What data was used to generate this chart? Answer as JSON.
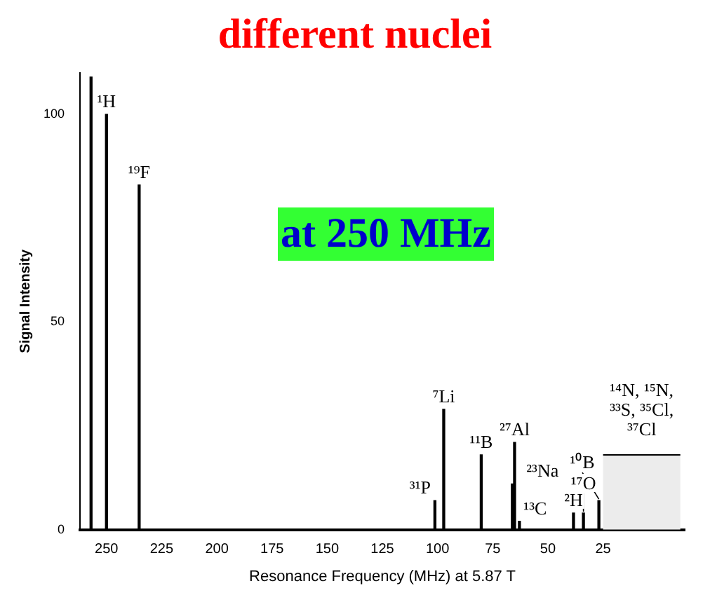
{
  "chart_data": {
    "type": "bar",
    "title": "different nuclei",
    "xlabel": "Resonance Frequency (MHz) at 5.87 T",
    "ylabel": "Signal Intensity",
    "x": [
      257,
      250,
      235.2,
      101.2,
      97.2,
      80.2,
      66.1,
      65.1,
      62.9,
      38.4,
      33.9,
      26.9
    ],
    "values": [
      109,
      100,
      83,
      7,
      29,
      18,
      11,
      21,
      2,
      4,
      4,
      7
    ],
    "color": "#000000",
    "xlim": [
      262,
      -12
    ],
    "xticks": [
      250,
      225,
      200,
      175,
      150,
      125,
      100,
      75,
      50,
      25
    ],
    "ylim": [
      0,
      110
    ],
    "yticks": [
      0,
      50,
      100
    ],
    "grid": false,
    "legend": false,
    "bands": [
      {
        "axis": "x",
        "from": 25,
        "to": -10,
        "label": "¹⁴N, ¹⁵N, ³³S, ³⁵Cl, ³⁷Cl"
      }
    ],
    "annotations": [
      "at 250 MHz",
      {
        "text": "¹H",
        "x": 250,
        "y": 100
      },
      {
        "text": "¹⁹F",
        "x": 235.2,
        "y": 83
      },
      {
        "text": "³¹P",
        "x": 101.2,
        "y": 7
      },
      {
        "text": "⁷Li",
        "x": 97.2,
        "y": 29
      },
      {
        "text": "¹¹B",
        "x": 80.2,
        "y": 18
      },
      {
        "text": "²³Na",
        "x": 66.1,
        "y": 11
      },
      {
        "text": "²⁷Al",
        "x": 65.1,
        "y": 21
      },
      {
        "text": "¹³C",
        "x": 62.9,
        "y": 2
      },
      {
        "text": "²H",
        "x": 38.4,
        "y": 4
      },
      {
        "text": "¹⁷O",
        "x": 33.9,
        "y": 4
      },
      {
        "text": "¹⁰B",
        "x": 26.9,
        "y": 7
      }
    ]
  }
}
